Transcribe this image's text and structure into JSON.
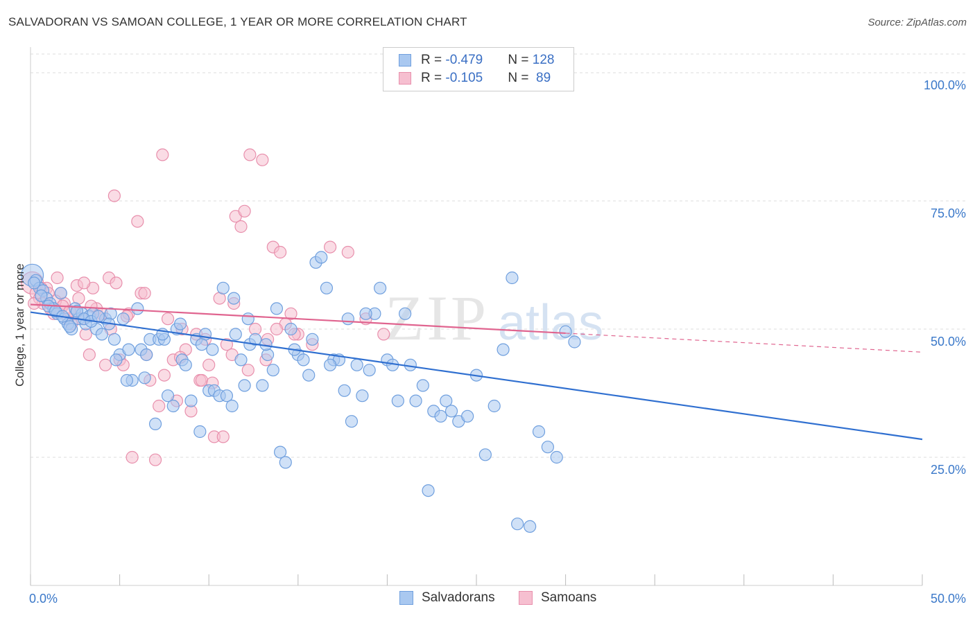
{
  "header": {
    "title": "SALVADORAN VS SAMOAN COLLEGE, 1 YEAR OR MORE CORRELATION CHART",
    "source": "Source: ZipAtlas.com"
  },
  "legend": {
    "rows": [
      {
        "r_label": "R = ",
        "r_value": "-0.479",
        "n_label": "N = ",
        "n_value": "128"
      },
      {
        "r_label": "R = ",
        "r_value": "-0.105",
        "n_label": "N = ",
        "n_value": " 89"
      }
    ]
  },
  "bottom_legend": [
    "Salvadorans",
    "Samoans"
  ],
  "watermark": {
    "zip": "ZIP",
    "atlas": "atlas"
  },
  "colors": {
    "blue_fill": "#a9c8f0",
    "blue_stroke": "#6f9fde",
    "blue_line": "#2f6fd0",
    "pink_fill": "#f6bfd0",
    "pink_stroke": "#e88fac",
    "pink_line": "#e0648f",
    "tick_text": "#3a78c9",
    "grid": "#dddddd"
  },
  "chart_data": {
    "type": "scatter",
    "title": "SALVADORAN VS SAMOAN COLLEGE, 1 YEAR OR MORE CORRELATION CHART",
    "xlabel": "",
    "ylabel": "College, 1 year or more",
    "xlim": [
      0,
      50
    ],
    "ylim": [
      0,
      105
    ],
    "x_tick_labels": [
      "0.0%",
      "50.0%"
    ],
    "y_ticks": [
      25,
      50,
      75,
      100
    ],
    "y_tick_labels": [
      "25.0%",
      "50.0%",
      "75.0%",
      "100.0%"
    ],
    "grid": true,
    "legend_position": "top-center",
    "series": [
      {
        "name": "Salvadorans",
        "r": -0.479,
        "n": 128,
        "trend": {
          "x": [
            0,
            50
          ],
          "y": [
            53.3,
            28.5
          ],
          "dashed_after": null
        },
        "points": [
          [
            0.1,
            60.5
          ],
          [
            0.3,
            59.5
          ],
          [
            0.5,
            58
          ],
          [
            0.7,
            57.5
          ],
          [
            0.9,
            56
          ],
          [
            1.1,
            55
          ],
          [
            1.3,
            54
          ],
          [
            1.5,
            53
          ],
          [
            1.7,
            57
          ],
          [
            1.9,
            52
          ],
          [
            2.1,
            51
          ],
          [
            2.3,
            50
          ],
          [
            2.5,
            54
          ],
          [
            2.7,
            52
          ],
          [
            2.9,
            53
          ],
          [
            3.1,
            51
          ],
          [
            3.3,
            52.5
          ],
          [
            3.5,
            53
          ],
          [
            3.7,
            50
          ],
          [
            4.0,
            49
          ],
          [
            4.2,
            52
          ],
          [
            4.5,
            53
          ],
          [
            4.7,
            48
          ],
          [
            5.0,
            45
          ],
          [
            5.2,
            52
          ],
          [
            5.5,
            46
          ],
          [
            5.7,
            40
          ],
          [
            6.0,
            54
          ],
          [
            6.2,
            46
          ],
          [
            6.5,
            45
          ],
          [
            6.7,
            48
          ],
          [
            7.0,
            31.5
          ],
          [
            7.2,
            48
          ],
          [
            7.5,
            48
          ],
          [
            7.7,
            37
          ],
          [
            8.0,
            35
          ],
          [
            8.2,
            50
          ],
          [
            8.5,
            44
          ],
          [
            8.7,
            43
          ],
          [
            9.0,
            36
          ],
          [
            9.3,
            48
          ],
          [
            9.5,
            30
          ],
          [
            9.8,
            49
          ],
          [
            10.0,
            38
          ],
          [
            10.3,
            38
          ],
          [
            10.6,
            37
          ],
          [
            11.0,
            37
          ],
          [
            11.3,
            35
          ],
          [
            11.5,
            49
          ],
          [
            11.8,
            44
          ],
          [
            12.0,
            39
          ],
          [
            12.3,
            47
          ],
          [
            12.6,
            48
          ],
          [
            13.0,
            39
          ],
          [
            13.3,
            45
          ],
          [
            13.6,
            42
          ],
          [
            14.0,
            26
          ],
          [
            14.3,
            24
          ],
          [
            14.6,
            50
          ],
          [
            15.0,
            45
          ],
          [
            15.3,
            44
          ],
          [
            15.6,
            41
          ],
          [
            16.0,
            63
          ],
          [
            16.3,
            64
          ],
          [
            16.6,
            58
          ],
          [
            17.0,
            44
          ],
          [
            17.3,
            44
          ],
          [
            17.6,
            38
          ],
          [
            18.0,
            32
          ],
          [
            18.3,
            43
          ],
          [
            18.6,
            37
          ],
          [
            19.0,
            42
          ],
          [
            19.3,
            53
          ],
          [
            19.6,
            58
          ],
          [
            20.0,
            44
          ],
          [
            20.3,
            43
          ],
          [
            20.6,
            36
          ],
          [
            21.0,
            53
          ],
          [
            21.3,
            43
          ],
          [
            21.6,
            36
          ],
          [
            22.0,
            39
          ],
          [
            22.3,
            18.5
          ],
          [
            22.6,
            34
          ],
          [
            23.0,
            33
          ],
          [
            23.3,
            36
          ],
          [
            23.6,
            34
          ],
          [
            24.0,
            32
          ],
          [
            24.5,
            33
          ],
          [
            25.0,
            41
          ],
          [
            25.5,
            25.5
          ],
          [
            26.0,
            35
          ],
          [
            26.5,
            46
          ],
          [
            27.0,
            60
          ],
          [
            27.3,
            12
          ],
          [
            28.0,
            11.5
          ],
          [
            28.5,
            30
          ],
          [
            29.0,
            27
          ],
          [
            29.5,
            25
          ],
          [
            30.0,
            49.5
          ],
          [
            30.5,
            47.5
          ],
          [
            0.2,
            59
          ],
          [
            0.6,
            56.5
          ],
          [
            1.0,
            54.5
          ],
          [
            1.4,
            53.5
          ],
          [
            1.8,
            52.5
          ],
          [
            2.2,
            50.5
          ],
          [
            2.6,
            53.5
          ],
          [
            3.0,
            52
          ],
          [
            3.4,
            51.5
          ],
          [
            3.8,
            52.5
          ],
          [
            4.4,
            51
          ],
          [
            4.8,
            44
          ],
          [
            5.4,
            40
          ],
          [
            6.4,
            40.5
          ],
          [
            7.4,
            49
          ],
          [
            8.4,
            51
          ],
          [
            9.6,
            47
          ],
          [
            10.2,
            46
          ],
          [
            10.8,
            58
          ],
          [
            11.4,
            56
          ],
          [
            12.2,
            52
          ],
          [
            13.2,
            47
          ],
          [
            13.8,
            54
          ],
          [
            14.8,
            46
          ],
          [
            15.8,
            48
          ],
          [
            16.8,
            43
          ],
          [
            17.8,
            52
          ],
          [
            18.8,
            53
          ]
        ]
      },
      {
        "name": "Samoans",
        "r": -0.105,
        "n": 89,
        "trend": {
          "x": [
            0,
            30,
            50
          ],
          "y": [
            54.8,
            49.2,
            45.5
          ],
          "dashed_after": 30
        },
        "points": [
          [
            0.1,
            59
          ],
          [
            0.3,
            57
          ],
          [
            0.5,
            56
          ],
          [
            0.7,
            55
          ],
          [
            0.9,
            58
          ],
          [
            1.1,
            54
          ],
          [
            1.3,
            53
          ],
          [
            1.5,
            60
          ],
          [
            1.7,
            57
          ],
          [
            1.9,
            55
          ],
          [
            2.1,
            52
          ],
          [
            2.3,
            51
          ],
          [
            2.5,
            53
          ],
          [
            2.7,
            56
          ],
          [
            2.9,
            52
          ],
          [
            3.1,
            49
          ],
          [
            3.3,
            45
          ],
          [
            3.5,
            58
          ],
          [
            3.7,
            54
          ],
          [
            4.0,
            53
          ],
          [
            4.2,
            43
          ],
          [
            4.5,
            50
          ],
          [
            4.7,
            76
          ],
          [
            5.0,
            44
          ],
          [
            5.2,
            43
          ],
          [
            5.5,
            53
          ],
          [
            5.7,
            25
          ],
          [
            6.0,
            71
          ],
          [
            6.2,
            57
          ],
          [
            6.5,
            45
          ],
          [
            6.7,
            40
          ],
          [
            7.0,
            24.5
          ],
          [
            7.2,
            35
          ],
          [
            7.5,
            41
          ],
          [
            7.7,
            52
          ],
          [
            8.0,
            44
          ],
          [
            8.2,
            36
          ],
          [
            8.5,
            50
          ],
          [
            8.7,
            46
          ],
          [
            9.0,
            34
          ],
          [
            9.3,
            49
          ],
          [
            9.5,
            40
          ],
          [
            9.8,
            48
          ],
          [
            10.0,
            43
          ],
          [
            10.3,
            29
          ],
          [
            10.6,
            56
          ],
          [
            11.0,
            47
          ],
          [
            11.3,
            45
          ],
          [
            11.5,
            72
          ],
          [
            11.8,
            70
          ],
          [
            12.0,
            73
          ],
          [
            12.3,
            84
          ],
          [
            12.6,
            50
          ],
          [
            13.0,
            83
          ],
          [
            13.3,
            48
          ],
          [
            13.6,
            66
          ],
          [
            14.0,
            65
          ],
          [
            14.3,
            51
          ],
          [
            14.6,
            53
          ],
          [
            15.0,
            49
          ],
          [
            0.2,
            55
          ],
          [
            0.6,
            58
          ],
          [
            1.0,
            57
          ],
          [
            1.4,
            55.5
          ],
          [
            1.8,
            54.5
          ],
          [
            2.2,
            53.5
          ],
          [
            2.6,
            58.5
          ],
          [
            3.0,
            59
          ],
          [
            3.4,
            54.5
          ],
          [
            3.8,
            52.5
          ],
          [
            4.4,
            60
          ],
          [
            4.8,
            59
          ],
          [
            5.4,
            52.5
          ],
          [
            6.4,
            57
          ],
          [
            7.4,
            84
          ],
          [
            8.4,
            44.5
          ],
          [
            9.6,
            40
          ],
          [
            10.2,
            39.5
          ],
          [
            10.8,
            29
          ],
          [
            11.4,
            55
          ],
          [
            12.2,
            42
          ],
          [
            13.2,
            44
          ],
          [
            13.8,
            50
          ],
          [
            14.8,
            49
          ],
          [
            15.8,
            47
          ],
          [
            16.8,
            66
          ],
          [
            17.8,
            65
          ],
          [
            18.8,
            52
          ],
          [
            19.8,
            49
          ]
        ]
      }
    ]
  }
}
